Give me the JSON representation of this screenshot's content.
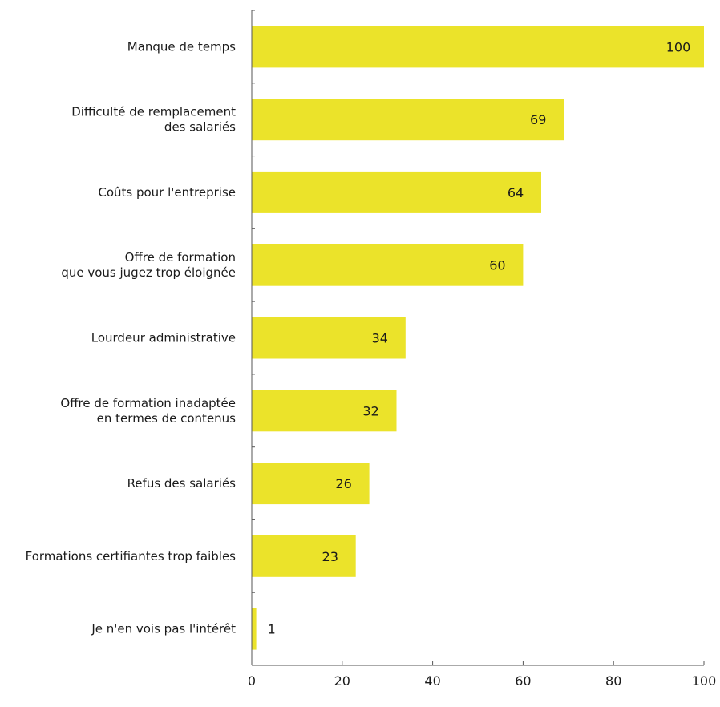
{
  "chart_data": {
    "type": "bar",
    "orientation": "horizontal",
    "title": "",
    "xlabel": "",
    "ylabel": "",
    "categories": [
      "Manque de temps",
      "Difficulté de remplacement\ndes salariés",
      "Coûts pour l'entreprise",
      "Offre de formation\nque vous jugez trop éloignée",
      "Lourdeur administrative",
      "Offre de formation inadaptée\nen termes de contenus",
      "Refus des salariés",
      "Formations certifiantes trop faibles",
      "Je n'en vois pas l'intérêt"
    ],
    "values": [
      100,
      69,
      64,
      60,
      34,
      32,
      26,
      23,
      1
    ],
    "xlim": [
      0,
      100
    ],
    "xticks": [
      0,
      20,
      40,
      60,
      80,
      100
    ],
    "grid": false,
    "legend": "none",
    "bar_color": "#ebe32a",
    "axis_color": "#555555"
  }
}
